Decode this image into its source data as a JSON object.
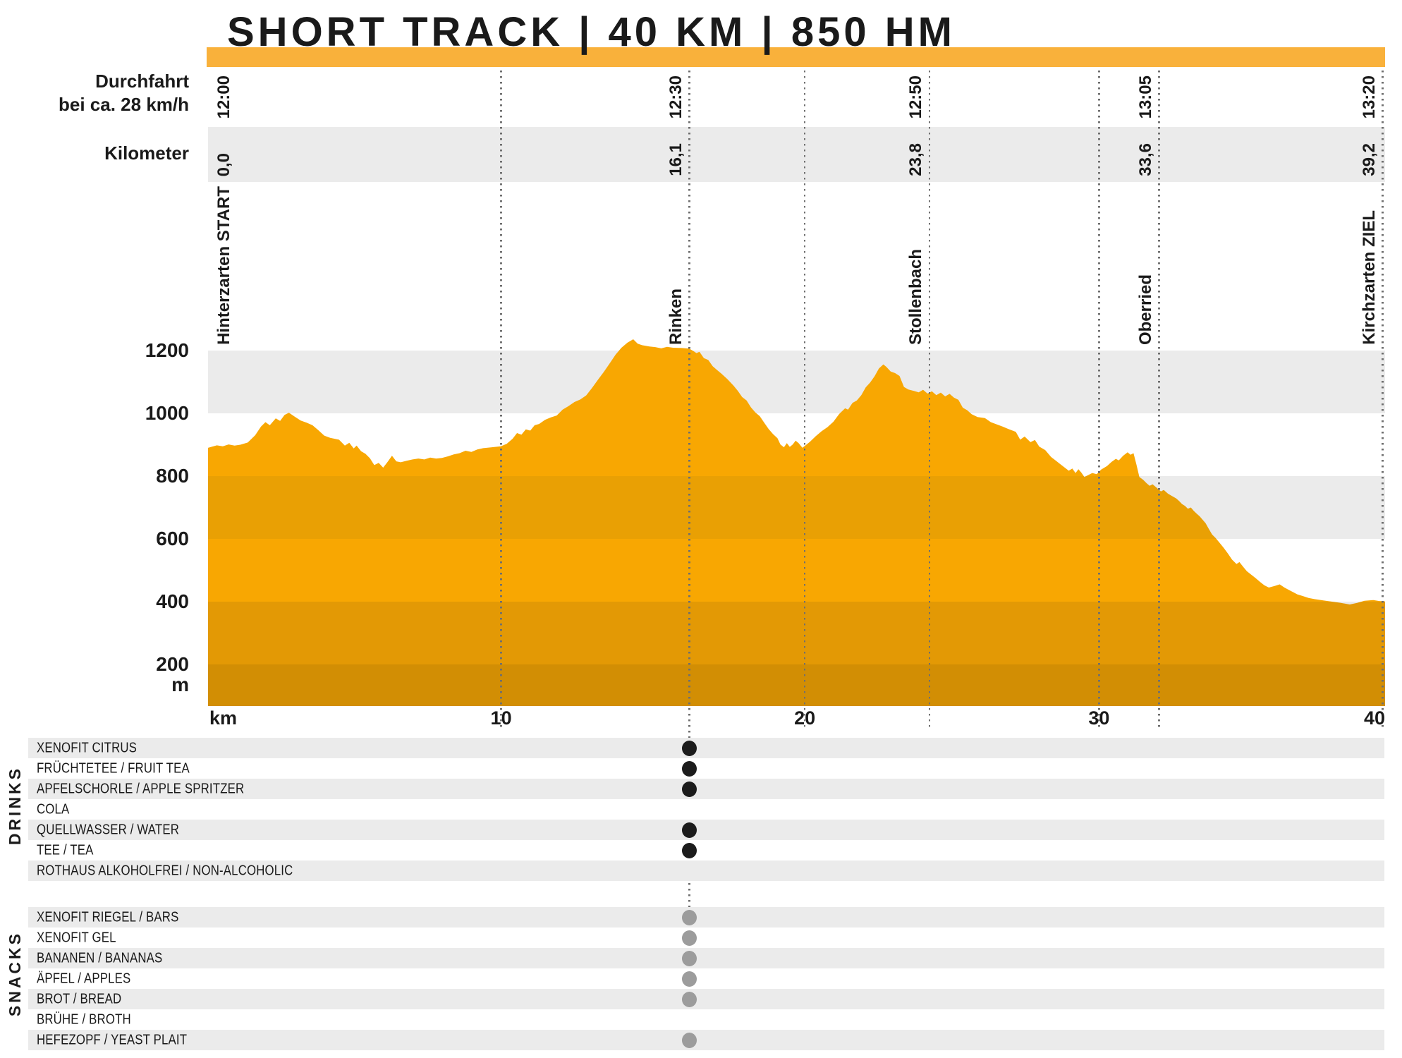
{
  "title": "SHORT TRACK | 40 KM | 850 HM",
  "header": {
    "pass_line1": "Durchfahrt",
    "pass_line2": "bei ca. 28 km/h",
    "km_label": "Kilometer"
  },
  "checkpoints": [
    {
      "name": "Hinterzarten START",
      "time": "12:00",
      "km": "0,0",
      "pct": 0.3,
      "line": false,
      "table_line": false,
      "label_side": "right"
    },
    {
      "name": "Rinken",
      "time": "12:30",
      "km": "16,1",
      "pct": 40.9,
      "line": true,
      "table_line": true,
      "label_side": "left"
    },
    {
      "name": "Stollenbach",
      "time": "12:50",
      "km": "23,8",
      "pct": 61.3,
      "line": true,
      "table_line": false,
      "label_side": "left"
    },
    {
      "name": "Oberried",
      "time": "13:05",
      "km": "33,6",
      "pct": 80.8,
      "line": true,
      "table_line": false,
      "label_side": "left"
    },
    {
      "name": "Kirchzarten ZIEL",
      "time": "13:20",
      "km": "39,2",
      "pct": 99.8,
      "line": true,
      "table_line": false,
      "label_side": "left"
    }
  ],
  "km_gridlines": [
    {
      "label": "10",
      "pct": 24.9
    },
    {
      "label": "20",
      "pct": 50.7
    },
    {
      "label": "30",
      "pct": 75.7
    }
  ],
  "x_axis": {
    "unit": "km",
    "end_label": "40"
  },
  "y_axis": {
    "ticks": [
      "1200",
      "1000",
      "800",
      "600",
      "400",
      "200"
    ],
    "unit": "m"
  },
  "chart_data": {
    "type": "area",
    "title": "SHORT TRACK | 40 KM | 850 HM",
    "xlabel": "km",
    "ylabel": "m",
    "xlim": [
      0,
      40
    ],
    "ylim": [
      0,
      1340
    ],
    "x_ticks": [
      10,
      20,
      30,
      40
    ],
    "y_ticks": [
      1200,
      1000,
      800,
      600,
      400,
      200
    ],
    "grid": "horizontal 200 m bands, dotted vertical lines at km ticks and checkpoints",
    "legend_position": "none",
    "checkpoints": [
      {
        "name": "Hinterzarten START",
        "km": 0.0,
        "time": "12:00"
      },
      {
        "name": "Rinken",
        "km": 16.1,
        "time": "12:30"
      },
      {
        "name": "Stollenbach",
        "km": 23.8,
        "time": "12:50"
      },
      {
        "name": "Oberried",
        "km": 33.6,
        "time": "13:05"
      },
      {
        "name": "Kirchzarten ZIEL",
        "km": 39.2,
        "time": "13:20"
      }
    ],
    "profile_km_m": [
      [
        0,
        890
      ],
      [
        0.3,
        898
      ],
      [
        0.5,
        895
      ],
      [
        0.7,
        901
      ],
      [
        0.9,
        897
      ],
      [
        1.1,
        900
      ],
      [
        1.35,
        907
      ],
      [
        1.6,
        930
      ],
      [
        1.8,
        958
      ],
      [
        1.95,
        972
      ],
      [
        2.1,
        962
      ],
      [
        2.3,
        984
      ],
      [
        2.45,
        976
      ],
      [
        2.6,
        995
      ],
      [
        2.75,
        1002
      ],
      [
        2.95,
        989
      ],
      [
        3.15,
        977
      ],
      [
        3.35,
        970
      ],
      [
        3.55,
        962
      ],
      [
        3.75,
        946
      ],
      [
        3.95,
        929
      ],
      [
        4.15,
        922
      ],
      [
        4.45,
        916
      ],
      [
        4.65,
        897
      ],
      [
        4.8,
        906
      ],
      [
        4.95,
        888
      ],
      [
        5.05,
        897
      ],
      [
        5.2,
        879
      ],
      [
        5.35,
        871
      ],
      [
        5.5,
        857
      ],
      [
        5.65,
        835
      ],
      [
        5.8,
        842
      ],
      [
        5.95,
        827
      ],
      [
        6.1,
        845
      ],
      [
        6.25,
        865
      ],
      [
        6.4,
        847
      ],
      [
        6.55,
        844
      ],
      [
        6.75,
        849
      ],
      [
        6.95,
        853
      ],
      [
        7.15,
        856
      ],
      [
        7.35,
        853
      ],
      [
        7.55,
        859
      ],
      [
        7.75,
        856
      ],
      [
        7.95,
        858
      ],
      [
        8.15,
        863
      ],
      [
        8.35,
        869
      ],
      [
        8.55,
        873
      ],
      [
        8.75,
        881
      ],
      [
        8.95,
        877
      ],
      [
        9.15,
        885
      ],
      [
        9.35,
        889
      ],
      [
        9.65,
        892
      ],
      [
        9.95,
        895
      ],
      [
        10.15,
        903
      ],
      [
        10.35,
        919
      ],
      [
        10.5,
        937
      ],
      [
        10.65,
        932
      ],
      [
        10.8,
        949
      ],
      [
        10.95,
        945
      ],
      [
        11.1,
        962
      ],
      [
        11.25,
        966
      ],
      [
        11.45,
        979
      ],
      [
        11.65,
        987
      ],
      [
        11.85,
        993
      ],
      [
        12.05,
        1012
      ],
      [
        12.25,
        1023
      ],
      [
        12.45,
        1036
      ],
      [
        12.65,
        1044
      ],
      [
        12.85,
        1057
      ],
      [
        13.05,
        1081
      ],
      [
        13.25,
        1107
      ],
      [
        13.45,
        1132
      ],
      [
        13.65,
        1159
      ],
      [
        13.85,
        1187
      ],
      [
        14.05,
        1209
      ],
      [
        14.25,
        1225
      ],
      [
        14.45,
        1236
      ],
      [
        14.6,
        1222
      ],
      [
        14.75,
        1217
      ],
      [
        15,
        1213
      ],
      [
        15.2,
        1211
      ],
      [
        15.4,
        1207
      ],
      [
        15.6,
        1212
      ],
      [
        15.8,
        1209
      ],
      [
        16.1,
        1208
      ],
      [
        16.35,
        1206
      ],
      [
        16.5,
        1198
      ],
      [
        16.6,
        1192
      ],
      [
        16.7,
        1196
      ],
      [
        16.85,
        1176
      ],
      [
        17,
        1170
      ],
      [
        17.15,
        1150
      ],
      [
        17.3,
        1138
      ],
      [
        17.45,
        1126
      ],
      [
        17.65,
        1109
      ],
      [
        17.85,
        1089
      ],
      [
        18,
        1072
      ],
      [
        18.15,
        1052
      ],
      [
        18.3,
        1041
      ],
      [
        18.45,
        1019
      ],
      [
        18.6,
        1003
      ],
      [
        18.75,
        991
      ],
      [
        18.9,
        970
      ],
      [
        19.05,
        950
      ],
      [
        19.2,
        934
      ],
      [
        19.35,
        921
      ],
      [
        19.45,
        901
      ],
      [
        19.57,
        892
      ],
      [
        19.67,
        905
      ],
      [
        19.77,
        893
      ],
      [
        19.87,
        901
      ],
      [
        19.97,
        913
      ],
      [
        20.07,
        905
      ],
      [
        20.2,
        890
      ],
      [
        20.45,
        909
      ],
      [
        20.65,
        927
      ],
      [
        20.85,
        943
      ],
      [
        21.05,
        956
      ],
      [
        21.25,
        973
      ],
      [
        21.45,
        998
      ],
      [
        21.65,
        1016
      ],
      [
        21.75,
        1012
      ],
      [
        21.9,
        1033
      ],
      [
        22.05,
        1041
      ],
      [
        22.2,
        1058
      ],
      [
        22.35,
        1083
      ],
      [
        22.5,
        1098
      ],
      [
        22.65,
        1118
      ],
      [
        22.8,
        1143
      ],
      [
        22.95,
        1156
      ],
      [
        23.05,
        1148
      ],
      [
        23.2,
        1133
      ],
      [
        23.35,
        1128
      ],
      [
        23.5,
        1119
      ],
      [
        23.65,
        1084
      ],
      [
        23.8,
        1076
      ],
      [
        24,
        1071
      ],
      [
        24.15,
        1067
      ],
      [
        24.3,
        1075
      ],
      [
        24.45,
        1063
      ],
      [
        24.6,
        1070
      ],
      [
        24.75,
        1058
      ],
      [
        24.9,
        1066
      ],
      [
        25.05,
        1054
      ],
      [
        25.2,
        1062
      ],
      [
        25.35,
        1050
      ],
      [
        25.5,
        1043
      ],
      [
        25.65,
        1018
      ],
      [
        25.8,
        1010
      ],
      [
        25.95,
        997
      ],
      [
        26.15,
        988
      ],
      [
        26.4,
        985
      ],
      [
        26.6,
        972
      ],
      [
        26.8,
        965
      ],
      [
        27,
        958
      ],
      [
        27.2,
        950
      ],
      [
        27.45,
        941
      ],
      [
        27.6,
        916
      ],
      [
        27.75,
        926
      ],
      [
        27.95,
        908
      ],
      [
        28.1,
        915
      ],
      [
        28.25,
        894
      ],
      [
        28.45,
        883
      ],
      [
        28.65,
        861
      ],
      [
        28.8,
        850
      ],
      [
        28.95,
        839
      ],
      [
        29.1,
        828
      ],
      [
        29.25,
        817
      ],
      [
        29.37,
        824
      ],
      [
        29.48,
        810
      ],
      [
        29.58,
        822
      ],
      [
        29.68,
        811
      ],
      [
        29.78,
        797
      ],
      [
        29.9,
        803
      ],
      [
        30.05,
        810
      ],
      [
        30.2,
        806
      ],
      [
        30.35,
        821
      ],
      [
        30.55,
        832
      ],
      [
        30.7,
        845
      ],
      [
        30.85,
        855
      ],
      [
        30.95,
        850
      ],
      [
        31.1,
        865
      ],
      [
        31.25,
        876
      ],
      [
        31.35,
        868
      ],
      [
        31.45,
        873
      ],
      [
        31.55,
        837
      ],
      [
        31.65,
        797
      ],
      [
        31.78,
        788
      ],
      [
        31.9,
        777
      ],
      [
        32,
        769
      ],
      [
        32.1,
        774
      ],
      [
        32.25,
        762
      ],
      [
        32.38,
        751
      ],
      [
        32.48,
        756
      ],
      [
        32.62,
        744
      ],
      [
        32.77,
        736
      ],
      [
        32.9,
        729
      ],
      [
        33,
        721
      ],
      [
        33.1,
        711
      ],
      [
        33.2,
        705
      ],
      [
        33.3,
        696
      ],
      [
        33.4,
        700
      ],
      [
        33.5,
        689
      ],
      [
        33.6,
        680
      ],
      [
        33.7,
        672
      ],
      [
        33.8,
        661
      ],
      [
        33.9,
        650
      ],
      [
        34,
        633
      ],
      [
        34.12,
        614
      ],
      [
        34.24,
        603
      ],
      [
        34.38,
        587
      ],
      [
        34.52,
        571
      ],
      [
        34.66,
        553
      ],
      [
        34.8,
        534
      ],
      [
        34.95,
        520
      ],
      [
        35.05,
        526
      ],
      [
        35.17,
        512
      ],
      [
        35.3,
        497
      ],
      [
        35.45,
        486
      ],
      [
        35.6,
        475
      ],
      [
        35.75,
        463
      ],
      [
        35.9,
        452
      ],
      [
        36.05,
        445
      ],
      [
        36.25,
        450
      ],
      [
        36.42,
        455
      ],
      [
        36.58,
        445
      ],
      [
        36.72,
        438
      ],
      [
        36.88,
        430
      ],
      [
        37.02,
        423
      ],
      [
        37.2,
        418
      ],
      [
        37.4,
        412
      ],
      [
        37.6,
        408
      ],
      [
        37.9,
        404
      ],
      [
        38.2,
        400
      ],
      [
        38.5,
        396
      ],
      [
        38.8,
        391
      ],
      [
        39.05,
        396
      ],
      [
        39.3,
        403
      ],
      [
        39.6,
        405
      ],
      [
        39.8,
        402
      ],
      [
        40,
        401
      ]
    ]
  },
  "stations": {
    "drinks": {
      "section_label": "DRINKS",
      "items": [
        {
          "label": "XENOFIT CITRUS",
          "available": true
        },
        {
          "label": "FRÜCHTETEE / FRUIT TEA",
          "available": true
        },
        {
          "label": "APFELSCHORLE / APPLE SPRITZER",
          "available": true
        },
        {
          "label": "COLA",
          "available": false
        },
        {
          "label": "QUELLWASSER / WATER",
          "available": true
        },
        {
          "label": "TEE / TEA",
          "available": true
        },
        {
          "label": "ROTHAUS ALKOHOLFREI / NON-ALCOHOLIC",
          "available": false
        }
      ]
    },
    "snacks": {
      "section_label": "SNACKS",
      "items": [
        {
          "label": "XENOFIT RIEGEL / BARS",
          "available": true
        },
        {
          "label": "XENOFIT GEL",
          "available": true
        },
        {
          "label": "BANANEN / BANANAS",
          "available": true
        },
        {
          "label": "ÄPFEL / APPLES",
          "available": true
        },
        {
          "label": "BROT / BREAD",
          "available": true
        },
        {
          "label": "BRÜHE / BROTH",
          "available": false
        },
        {
          "label": "HEFEZOPF / YEAST PLAIT",
          "available": true
        }
      ]
    }
  },
  "colors": {
    "accent_bar": "#F9B13B",
    "profile_bright": "#F8A702",
    "profile_mid_upper": "#E9A004",
    "profile_mid_lower": "#E39905",
    "profile_dark": "#D28E04",
    "band_gray": "#EBEBEB",
    "row_gray": "#EBEBEB",
    "text": "#1A1A1A",
    "dotted_line": "#6F6F6F",
    "drink_dot": "#1C1C1C",
    "snack_dot": "#9C9C9C"
  }
}
